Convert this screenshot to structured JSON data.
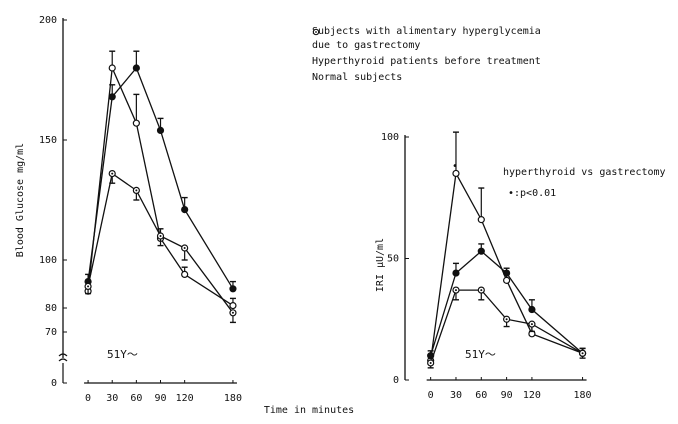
{
  "chart_data": [
    {
      "type": "line",
      "ylabel": "Blood Glucose  mg/ml",
      "xlabel": "Time in minutes",
      "x": [
        0,
        30,
        60,
        90,
        120,
        180
      ],
      "xlim": [
        -15,
        190
      ],
      "xticks": [
        0,
        30,
        60,
        90,
        120,
        180
      ],
      "ylim": [
        0,
        200
      ],
      "yticks": [
        0,
        70,
        80,
        100,
        150,
        200
      ],
      "broken_axis": true,
      "annotations": [
        "51Y～"
      ],
      "series": [
        {
          "name": "Subjects with alimentary hyperglycemia due to gastrectomy",
          "color": "#111",
          "marker": "open",
          "error_side": "up",
          "values": [
            87,
            180,
            157,
            109,
            94,
            81
          ],
          "errors": [
            2,
            7,
            12,
            4,
            3,
            3
          ]
        },
        {
          "name": "Hyperthyroid patients before treatment",
          "color": "#111",
          "marker": "filled",
          "error_side": "up",
          "values": [
            91,
            168,
            180,
            154,
            121,
            88
          ],
          "errors": [
            3,
            5,
            7,
            5,
            5,
            3
          ]
        },
        {
          "name": "Normal subjects",
          "color": "#111",
          "marker": "dotted",
          "error_side": "down",
          "values": [
            89,
            136,
            129,
            110,
            105,
            78
          ],
          "errors": [
            3,
            4,
            4,
            4,
            5,
            4
          ]
        }
      ]
    },
    {
      "type": "line",
      "ylabel": "IRI  μU/ml",
      "x": [
        0,
        30,
        60,
        90,
        120,
        180
      ],
      "xlim": [
        -15,
        190
      ],
      "xticks": [
        0,
        30,
        60,
        90,
        120,
        180
      ],
      "ylim": [
        0,
        100
      ],
      "yticks": [
        0,
        50,
        100
      ],
      "broken_axis": false,
      "annotations": [
        "51Y～",
        "hyperthyroid vs gastrectomy",
        "•:p<0.01",
        "•"
      ],
      "series": [
        {
          "color": "#111",
          "marker": "open",
          "error_side": "up",
          "values": [
            8,
            85,
            66,
            41,
            19,
            11
          ],
          "errors": [
            2,
            17,
            13,
            3,
            4,
            2
          ]
        },
        {
          "color": "#111",
          "marker": "filled",
          "error_side": "up",
          "values": [
            10,
            44,
            53,
            44,
            29,
            11
          ],
          "errors": [
            2,
            4,
            3,
            2,
            4,
            2
          ]
        },
        {
          "color": "#111",
          "marker": "dotted",
          "error_side": "down",
          "values": [
            7,
            37,
            37,
            25,
            23,
            11
          ],
          "errors": [
            2,
            4,
            4,
            3,
            3,
            2
          ]
        }
      ]
    }
  ]
}
